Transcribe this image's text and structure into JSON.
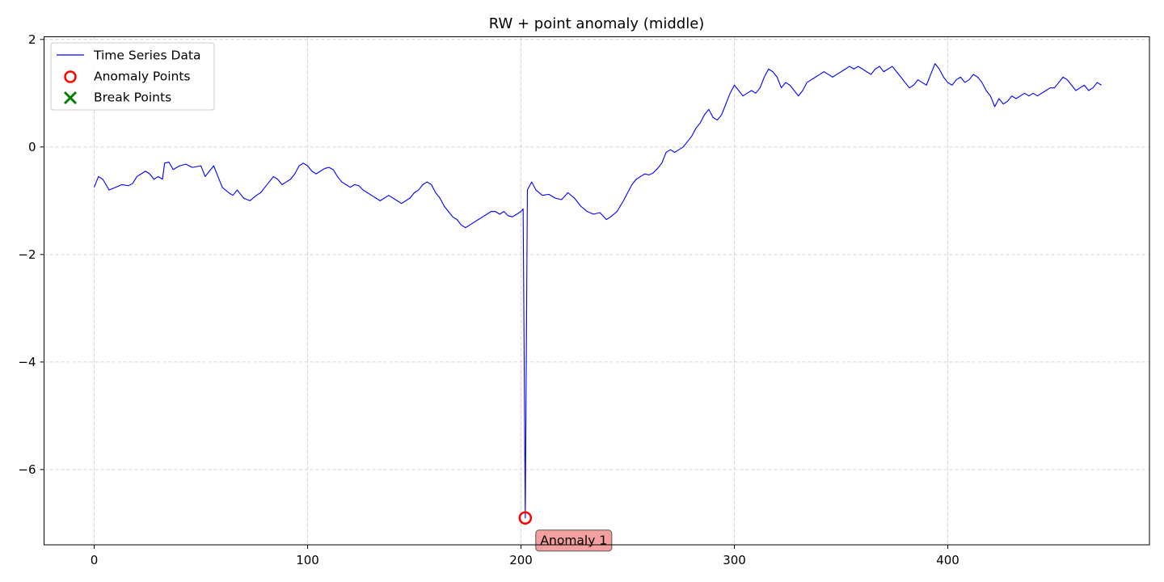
{
  "chart_data": {
    "type": "line",
    "title": "RW + point anomaly (middle)",
    "xlabel": "",
    "ylabel": "",
    "xlim": [
      -23.5,
      494.5
    ],
    "ylim": [
      -7.4,
      2.05
    ],
    "xticks": [
      0,
      100,
      200,
      300,
      400
    ],
    "yticks": [
      2,
      0,
      -2,
      -4,
      -6
    ],
    "ytick_labels": [
      "2",
      "0",
      "−2",
      "−4",
      "−6"
    ],
    "grid": true,
    "legend_position": "top-left",
    "legend": [
      {
        "label": "Time Series Data",
        "marker": "line",
        "color": "#0000ff"
      },
      {
        "label": "Anomaly Points",
        "marker": "circle",
        "color": "#ff0000"
      },
      {
        "label": "Break Points",
        "marker": "x",
        "color": "#008000"
      }
    ],
    "series": [
      {
        "name": "Time Series Data",
        "color": "#0000ff",
        "keypoints": [
          [
            0,
            -0.75
          ],
          [
            2,
            -0.55
          ],
          [
            4,
            -0.6
          ],
          [
            7,
            -0.8
          ],
          [
            10,
            -0.75
          ],
          [
            13,
            -0.7
          ],
          [
            16,
            -0.72
          ],
          [
            18,
            -0.68
          ],
          [
            20,
            -0.55
          ],
          [
            22,
            -0.5
          ],
          [
            24,
            -0.45
          ],
          [
            26,
            -0.5
          ],
          [
            28,
            -0.6
          ],
          [
            30,
            -0.55
          ],
          [
            32,
            -0.6
          ],
          [
            33,
            -0.3
          ],
          [
            35,
            -0.28
          ],
          [
            37,
            -0.42
          ],
          [
            40,
            -0.35
          ],
          [
            43,
            -0.32
          ],
          [
            46,
            -0.38
          ],
          [
            50,
            -0.35
          ],
          [
            52,
            -0.55
          ],
          [
            54,
            -0.45
          ],
          [
            56,
            -0.35
          ],
          [
            58,
            -0.55
          ],
          [
            60,
            -0.75
          ],
          [
            63,
            -0.85
          ],
          [
            65,
            -0.9
          ],
          [
            67,
            -0.8
          ],
          [
            70,
            -0.95
          ],
          [
            73,
            -1.0
          ],
          [
            76,
            -0.9
          ],
          [
            78,
            -0.85
          ],
          [
            80,
            -0.75
          ],
          [
            82,
            -0.65
          ],
          [
            84,
            -0.55
          ],
          [
            86,
            -0.6
          ],
          [
            88,
            -0.7
          ],
          [
            90,
            -0.65
          ],
          [
            92,
            -0.6
          ],
          [
            94,
            -0.5
          ],
          [
            96,
            -0.35
          ],
          [
            98,
            -0.3
          ],
          [
            100,
            -0.35
          ],
          [
            102,
            -0.45
          ],
          [
            104,
            -0.5
          ],
          [
            106,
            -0.45
          ],
          [
            108,
            -0.4
          ],
          [
            110,
            -0.38
          ],
          [
            112,
            -0.42
          ],
          [
            114,
            -0.55
          ],
          [
            116,
            -0.65
          ],
          [
            118,
            -0.7
          ],
          [
            120,
            -0.75
          ],
          [
            122,
            -0.7
          ],
          [
            124,
            -0.72
          ],
          [
            126,
            -0.8
          ],
          [
            128,
            -0.85
          ],
          [
            130,
            -0.9
          ],
          [
            132,
            -0.95
          ],
          [
            134,
            -1.0
          ],
          [
            136,
            -0.95
          ],
          [
            138,
            -0.9
          ],
          [
            140,
            -0.95
          ],
          [
            142,
            -1.0
          ],
          [
            144,
            -1.05
          ],
          [
            146,
            -1.0
          ],
          [
            148,
            -0.95
          ],
          [
            150,
            -0.85
          ],
          [
            152,
            -0.8
          ],
          [
            154,
            -0.7
          ],
          [
            156,
            -0.65
          ],
          [
            158,
            -0.7
          ],
          [
            160,
            -0.85
          ],
          [
            162,
            -0.95
          ],
          [
            164,
            -1.1
          ],
          [
            166,
            -1.2
          ],
          [
            168,
            -1.3
          ],
          [
            170,
            -1.35
          ],
          [
            172,
            -1.45
          ],
          [
            174,
            -1.5
          ],
          [
            176,
            -1.45
          ],
          [
            178,
            -1.4
          ],
          [
            180,
            -1.35
          ],
          [
            182,
            -1.3
          ],
          [
            184,
            -1.25
          ],
          [
            186,
            -1.2
          ],
          [
            188,
            -1.2
          ],
          [
            190,
            -1.25
          ],
          [
            192,
            -1.2
          ],
          [
            194,
            -1.28
          ],
          [
            196,
            -1.3
          ],
          [
            198,
            -1.25
          ],
          [
            200,
            -1.2
          ],
          [
            201,
            -1.15
          ],
          [
            202,
            -6.9
          ],
          [
            203,
            -0.8
          ],
          [
            205,
            -0.65
          ],
          [
            207,
            -0.8
          ],
          [
            210,
            -0.9
          ],
          [
            213,
            -0.88
          ],
          [
            216,
            -0.95
          ],
          [
            219,
            -0.98
          ],
          [
            222,
            -0.85
          ],
          [
            225,
            -0.95
          ],
          [
            228,
            -1.1
          ],
          [
            231,
            -1.2
          ],
          [
            234,
            -1.25
          ],
          [
            237,
            -1.22
          ],
          [
            240,
            -1.35
          ],
          [
            242,
            -1.3
          ],
          [
            245,
            -1.2
          ],
          [
            248,
            -1.0
          ],
          [
            250,
            -0.85
          ],
          [
            252,
            -0.7
          ],
          [
            254,
            -0.6
          ],
          [
            256,
            -0.55
          ],
          [
            258,
            -0.5
          ],
          [
            260,
            -0.52
          ],
          [
            262,
            -0.48
          ],
          [
            264,
            -0.4
          ],
          [
            266,
            -0.3
          ],
          [
            268,
            -0.1
          ],
          [
            270,
            -0.05
          ],
          [
            272,
            -0.1
          ],
          [
            274,
            -0.05
          ],
          [
            276,
            0.0
          ],
          [
            278,
            0.1
          ],
          [
            280,
            0.2
          ],
          [
            282,
            0.35
          ],
          [
            284,
            0.45
          ],
          [
            286,
            0.6
          ],
          [
            288,
            0.7
          ],
          [
            290,
            0.55
          ],
          [
            292,
            0.5
          ],
          [
            294,
            0.6
          ],
          [
            296,
            0.8
          ],
          [
            298,
            1.0
          ],
          [
            300,
            1.15
          ],
          [
            302,
            1.05
          ],
          [
            304,
            0.95
          ],
          [
            306,
            1.0
          ],
          [
            308,
            1.05
          ],
          [
            310,
            1.0
          ],
          [
            312,
            1.1
          ],
          [
            314,
            1.3
          ],
          [
            316,
            1.45
          ],
          [
            318,
            1.4
          ],
          [
            320,
            1.3
          ],
          [
            322,
            1.1
          ],
          [
            324,
            1.2
          ],
          [
            326,
            1.15
          ],
          [
            328,
            1.05
          ],
          [
            330,
            0.95
          ],
          [
            332,
            1.05
          ],
          [
            334,
            1.2
          ],
          [
            336,
            1.25
          ],
          [
            338,
            1.3
          ],
          [
            340,
            1.35
          ],
          [
            342,
            1.4
          ],
          [
            344,
            1.35
          ],
          [
            346,
            1.3
          ],
          [
            348,
            1.35
          ],
          [
            350,
            1.4
          ],
          [
            352,
            1.45
          ],
          [
            354,
            1.5
          ],
          [
            356,
            1.45
          ],
          [
            358,
            1.5
          ],
          [
            360,
            1.45
          ],
          [
            362,
            1.4
          ],
          [
            364,
            1.35
          ],
          [
            366,
            1.45
          ],
          [
            368,
            1.5
          ],
          [
            370,
            1.4
          ],
          [
            372,
            1.45
          ],
          [
            374,
            1.5
          ],
          [
            376,
            1.4
          ],
          [
            378,
            1.3
          ],
          [
            380,
            1.2
          ],
          [
            382,
            1.1
          ],
          [
            384,
            1.15
          ],
          [
            386,
            1.25
          ],
          [
            388,
            1.2
          ],
          [
            390,
            1.15
          ],
          [
            392,
            1.35
          ],
          [
            394,
            1.55
          ],
          [
            396,
            1.45
          ],
          [
            398,
            1.3
          ],
          [
            400,
            1.2
          ],
          [
            402,
            1.15
          ],
          [
            404,
            1.25
          ],
          [
            406,
            1.3
          ],
          [
            408,
            1.2
          ],
          [
            410,
            1.25
          ],
          [
            412,
            1.35
          ],
          [
            414,
            1.3
          ],
          [
            416,
            1.2
          ],
          [
            418,
            1.05
          ],
          [
            420,
            0.95
          ],
          [
            422,
            0.75
          ],
          [
            424,
            0.9
          ],
          [
            426,
            0.8
          ],
          [
            428,
            0.85
          ],
          [
            430,
            0.95
          ],
          [
            432,
            0.9
          ],
          [
            434,
            0.95
          ],
          [
            436,
            1.0
          ],
          [
            438,
            0.95
          ],
          [
            440,
            1.0
          ],
          [
            442,
            0.95
          ],
          [
            444,
            1.0
          ],
          [
            446,
            1.05
          ],
          [
            448,
            1.1
          ],
          [
            450,
            1.1
          ],
          [
            452,
            1.2
          ],
          [
            454,
            1.3
          ],
          [
            456,
            1.25
          ],
          [
            458,
            1.15
          ],
          [
            460,
            1.05
          ],
          [
            462,
            1.1
          ],
          [
            464,
            1.15
          ],
          [
            466,
            1.05
          ],
          [
            468,
            1.1
          ],
          [
            470,
            1.2
          ],
          [
            472,
            1.15
          ]
        ]
      }
    ],
    "anomalies": [
      {
        "x": 202,
        "y": -6.9,
        "label": "Anomaly 1",
        "color": "#ff0000"
      }
    ],
    "break_points": []
  }
}
